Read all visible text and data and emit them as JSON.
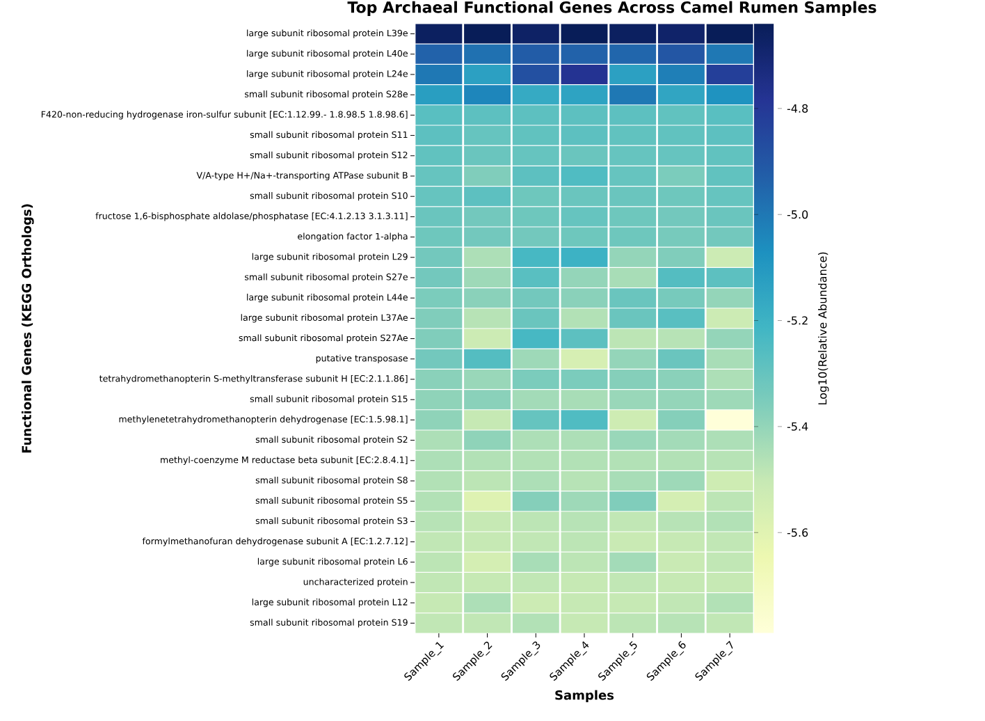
{
  "chart_data": {
    "type": "heatmap",
    "title": "Top Archaeal Functional Genes Across Camel Rumen Samples",
    "xlabel": "Samples",
    "ylabel": "Functional Genes (KEGG Orthologs)",
    "clabel": "Log10(Relative Abundance)",
    "categories": [
      "Sample_1",
      "Sample_2",
      "Sample_3",
      "Sample_4",
      "Sample_5",
      "Sample_6",
      "Sample_7"
    ],
    "y_categories": [
      "large subunit ribosomal protein L39e",
      "large subunit ribosomal protein L40e",
      "large subunit ribosomal protein L24e",
      "small subunit ribosomal protein S28e",
      "F420-non-reducing hydrogenase iron-sulfur subunit [EC:1.12.99.- 1.8.98.5 1.8.98.6]",
      "small subunit ribosomal protein S11",
      "small subunit ribosomal protein S12",
      "V/A-type H+/Na+-transporting ATPase subunit B",
      "small subunit ribosomal protein S10",
      "fructose 1,6-bisphosphate aldolase/phosphatase [EC:4.1.2.13 3.1.3.11]",
      "elongation factor 1-alpha",
      "large subunit ribosomal protein L29",
      "small subunit ribosomal protein S27e",
      "large subunit ribosomal protein L44e",
      "large subunit ribosomal protein L37Ae",
      "small subunit ribosomal protein S27Ae",
      "putative transposase",
      "tetrahydromethanopterin S-methyltransferase subunit H [EC:2.1.1.86]",
      "small subunit ribosomal protein S15",
      "methylenetetrahydromethanopterin dehydrogenase [EC:1.5.98.1]",
      "small subunit ribosomal protein S2",
      "methyl-coenzyme M reductase beta subunit [EC:2.8.4.1]",
      "small subunit ribosomal protein S8",
      "small subunit ribosomal protein S5",
      "small subunit ribosomal protein S3",
      "formylmethanofuran dehydrogenase subunit A [EC:1.2.7.12]",
      "large subunit ribosomal protein L6",
      "uncharacterized protein",
      "large subunit ribosomal protein L12",
      "small subunit ribosomal protein S19"
    ],
    "cells": [
      [
        -4.66,
        -4.64,
        -4.67,
        -4.64,
        -4.66,
        -4.68,
        -4.64
      ],
      [
        -4.94,
        -4.98,
        -4.92,
        -4.94,
        -4.95,
        -4.9,
        -5.0
      ],
      [
        -5.0,
        -5.13,
        -4.88,
        -4.78,
        -5.13,
        -5.02,
        -4.82
      ],
      [
        -5.12,
        -5.04,
        -5.17,
        -5.14,
        -5.0,
        -5.15,
        -5.08
      ],
      [
        -5.27,
        -5.28,
        -5.28,
        -5.28,
        -5.28,
        -5.29,
        -5.27
      ],
      [
        -5.28,
        -5.3,
        -5.29,
        -5.28,
        -5.29,
        -5.29,
        -5.28
      ],
      [
        -5.29,
        -5.31,
        -5.3,
        -5.31,
        -5.3,
        -5.3,
        -5.29
      ],
      [
        -5.3,
        -5.36,
        -5.28,
        -5.25,
        -5.3,
        -5.35,
        -5.29
      ],
      [
        -5.3,
        -5.28,
        -5.32,
        -5.31,
        -5.31,
        -5.32,
        -5.3
      ],
      [
        -5.31,
        -5.33,
        -5.32,
        -5.3,
        -5.32,
        -5.33,
        -5.31
      ],
      [
        -5.32,
        -5.33,
        -5.33,
        -5.32,
        -5.32,
        -5.34,
        -5.33
      ],
      [
        -5.33,
        -5.45,
        -5.23,
        -5.2,
        -5.4,
        -5.36,
        -5.52
      ],
      [
        -5.33,
        -5.42,
        -5.27,
        -5.4,
        -5.44,
        -5.26,
        -5.28
      ],
      [
        -5.35,
        -5.38,
        -5.33,
        -5.38,
        -5.31,
        -5.34,
        -5.4
      ],
      [
        -5.36,
        -5.47,
        -5.31,
        -5.46,
        -5.31,
        -5.27,
        -5.52
      ],
      [
        -5.36,
        -5.52,
        -5.23,
        -5.28,
        -5.48,
        -5.47,
        -5.4
      ],
      [
        -5.33,
        -5.26,
        -5.42,
        -5.56,
        -5.4,
        -5.31,
        -5.44
      ],
      [
        -5.38,
        -5.41,
        -5.35,
        -5.35,
        -5.37,
        -5.38,
        -5.45
      ],
      [
        -5.39,
        -5.38,
        -5.43,
        -5.44,
        -5.41,
        -5.4,
        -5.42
      ],
      [
        -5.39,
        -5.5,
        -5.3,
        -5.25,
        -5.53,
        -5.37,
        -5.79
      ],
      [
        -5.45,
        -5.39,
        -5.45,
        -5.45,
        -5.41,
        -5.43,
        -5.45
      ],
      [
        -5.45,
        -5.46,
        -5.46,
        -5.46,
        -5.46,
        -5.46,
        -5.47
      ],
      [
        -5.46,
        -5.48,
        -5.45,
        -5.47,
        -5.44,
        -5.42,
        -5.53
      ],
      [
        -5.46,
        -5.59,
        -5.37,
        -5.42,
        -5.36,
        -5.55,
        -5.48
      ],
      [
        -5.47,
        -5.5,
        -5.48,
        -5.47,
        -5.49,
        -5.47,
        -5.46
      ],
      [
        -5.49,
        -5.5,
        -5.49,
        -5.48,
        -5.51,
        -5.5,
        -5.49
      ],
      [
        -5.48,
        -5.55,
        -5.44,
        -5.48,
        -5.43,
        -5.51,
        -5.49
      ],
      [
        -5.49,
        -5.5,
        -5.49,
        -5.5,
        -5.49,
        -5.5,
        -5.5
      ],
      [
        -5.5,
        -5.45,
        -5.52,
        -5.5,
        -5.5,
        -5.49,
        -5.46
      ],
      [
        -5.49,
        -5.49,
        -5.46,
        -5.5,
        -5.48,
        -5.47,
        -5.49
      ]
    ],
    "clim": [
      -5.79,
      -4.64
    ],
    "cticks": [
      -4.8,
      {
        "value": -5.0,
        "label": "-5.0"
      },
      -5.2,
      -5.4,
      -5.6
    ]
  }
}
